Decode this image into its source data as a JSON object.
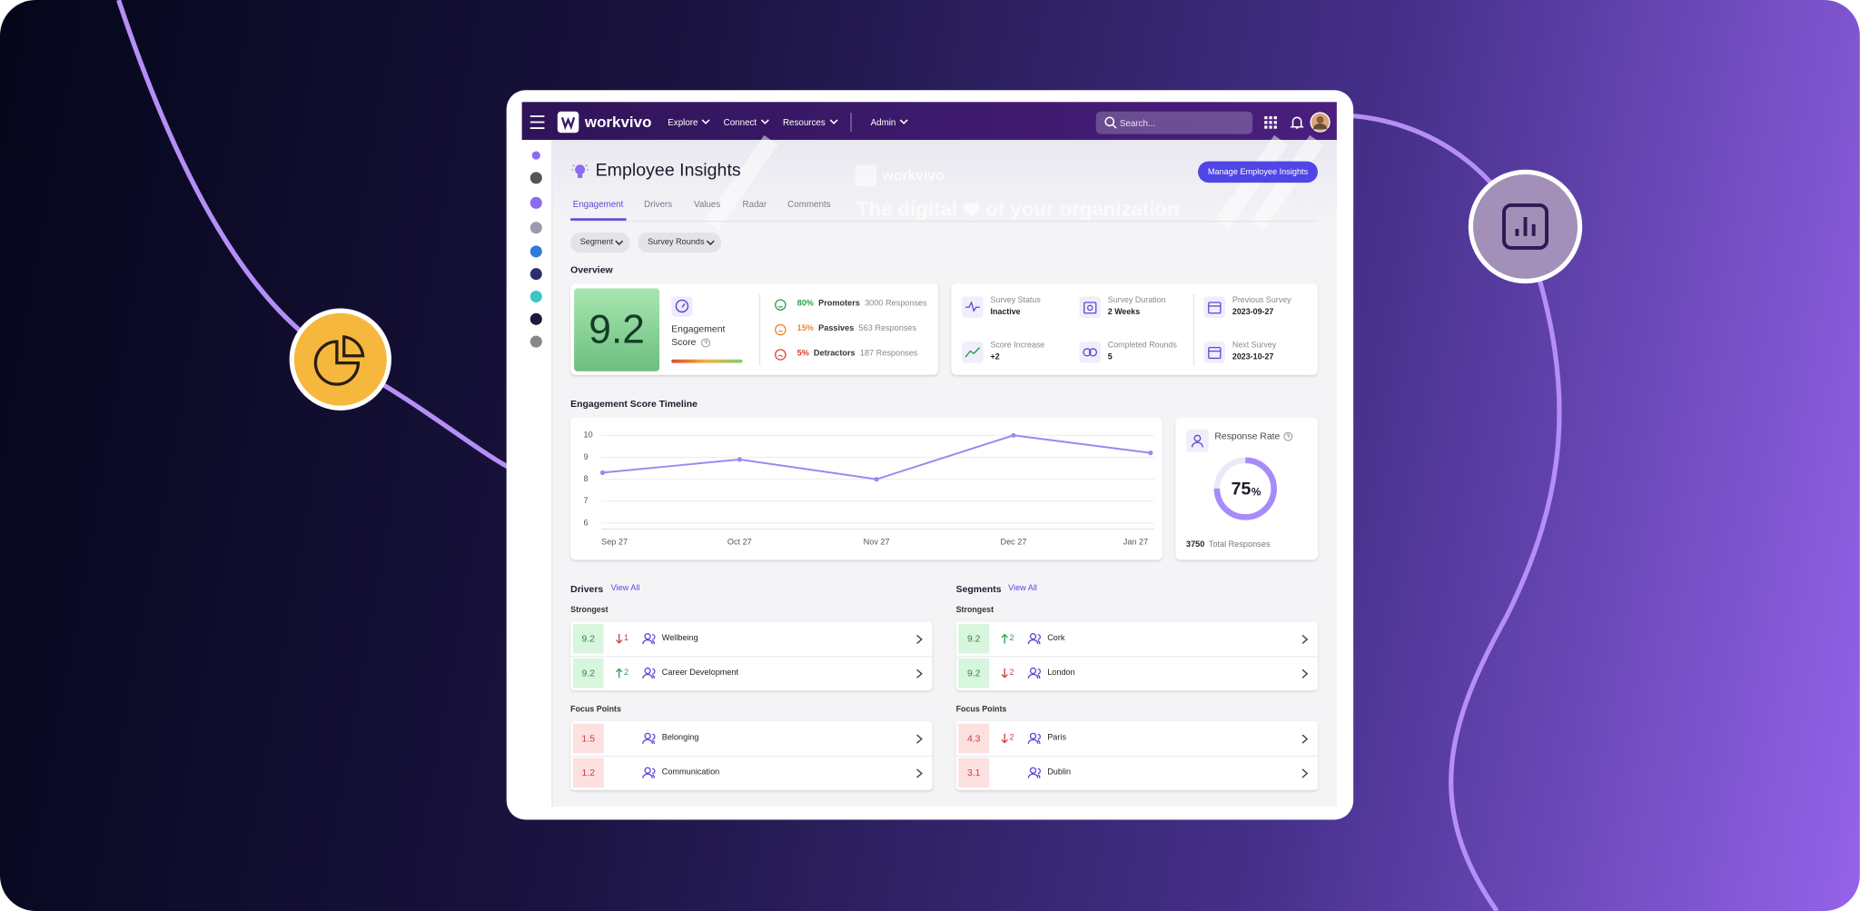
{
  "nav": {
    "brand": "workvivo",
    "menu": [
      "Explore",
      "Connect",
      "Resources"
    ],
    "admin": "Admin",
    "search": "Search..."
  },
  "banner": {
    "brand": "workvivo",
    "tagline_start": "The digital",
    "tagline_end": "of your organization"
  },
  "header": {
    "title": "Employee Insights",
    "button": "Manage Employee Insights"
  },
  "tabs": {
    "items": [
      "Engagement",
      "Drivers",
      "Values",
      "Radar",
      "Comments"
    ],
    "active": 0
  },
  "filters": [
    "Segment",
    "Survey Rounds"
  ],
  "overview": {
    "title": "Overview",
    "score": 9.2,
    "score_label": "Engagement Score",
    "breakdown": [
      {
        "percent": "80%",
        "label": "Promoters",
        "responses": "3000 Responses",
        "color": "#2f9e4f"
      },
      {
        "percent": "15%",
        "label": "Passives",
        "responses": "563 Responses",
        "color": "#e98a2b"
      },
      {
        "percent": "5%",
        "label": "Detractors",
        "responses": "187 Responses",
        "color": "#d9433a"
      }
    ]
  },
  "status": [
    {
      "label": "Survey Status",
      "value": "Inactive"
    },
    {
      "label": "Survey Duration",
      "value": "2 Weeks"
    },
    {
      "label": "Previous Survey",
      "value": "2023-09-27"
    },
    {
      "label": "Score Increase",
      "value": "+2"
    },
    {
      "label": "Completed Rounds",
      "value": "5"
    },
    {
      "label": "Next Survey",
      "value": "2023-10-27"
    }
  ],
  "timeline": {
    "type": "line",
    "title": "Engagement Score Timeline",
    "categories": [
      "Sep 27",
      "Oct 27",
      "Nov 27",
      "Dec 27",
      "Jan 27"
    ],
    "values": [
      8.3,
      8.9,
      8.0,
      10,
      9.2
    ],
    "color": "#9d87f0",
    "ylim": [
      6,
      10
    ],
    "yticks": [
      6,
      7,
      8,
      9,
      10
    ],
    "grid": true
  },
  "response_rate": {
    "title": "Response Rate",
    "value": 75,
    "unit": "%",
    "total": 3750,
    "total_label": "Total Responses",
    "color": "#a78bfa"
  },
  "drivers": {
    "title": "Drivers",
    "view_all": "View All",
    "strongest_title": "Strongest",
    "strongest": [
      {
        "score": 9.2,
        "change": 1,
        "direction": "down",
        "name": "Wellbeing"
      },
      {
        "score": 9.2,
        "change": 2,
        "direction": "up",
        "name": "Career Development"
      }
    ],
    "focus_title": "Focus Points",
    "focus": [
      {
        "score": 1.5,
        "name": "Belonging"
      },
      {
        "score": 1.2,
        "name": "Communication"
      }
    ]
  },
  "segments": {
    "title": "Segments",
    "view_all": "View All",
    "strongest_title": "Strongest",
    "strongest": [
      {
        "score": 9.2,
        "change": 2,
        "direction": "up",
        "name": "Cork"
      },
      {
        "score": 9.2,
        "change": 2,
        "direction": "down",
        "name": "London"
      }
    ],
    "focus_title": "Focus Points",
    "focus": [
      {
        "score": 4.3,
        "change": 2,
        "direction": "down",
        "name": "Paris"
      },
      {
        "score": 3.1,
        "name": "Dublin"
      }
    ]
  }
}
